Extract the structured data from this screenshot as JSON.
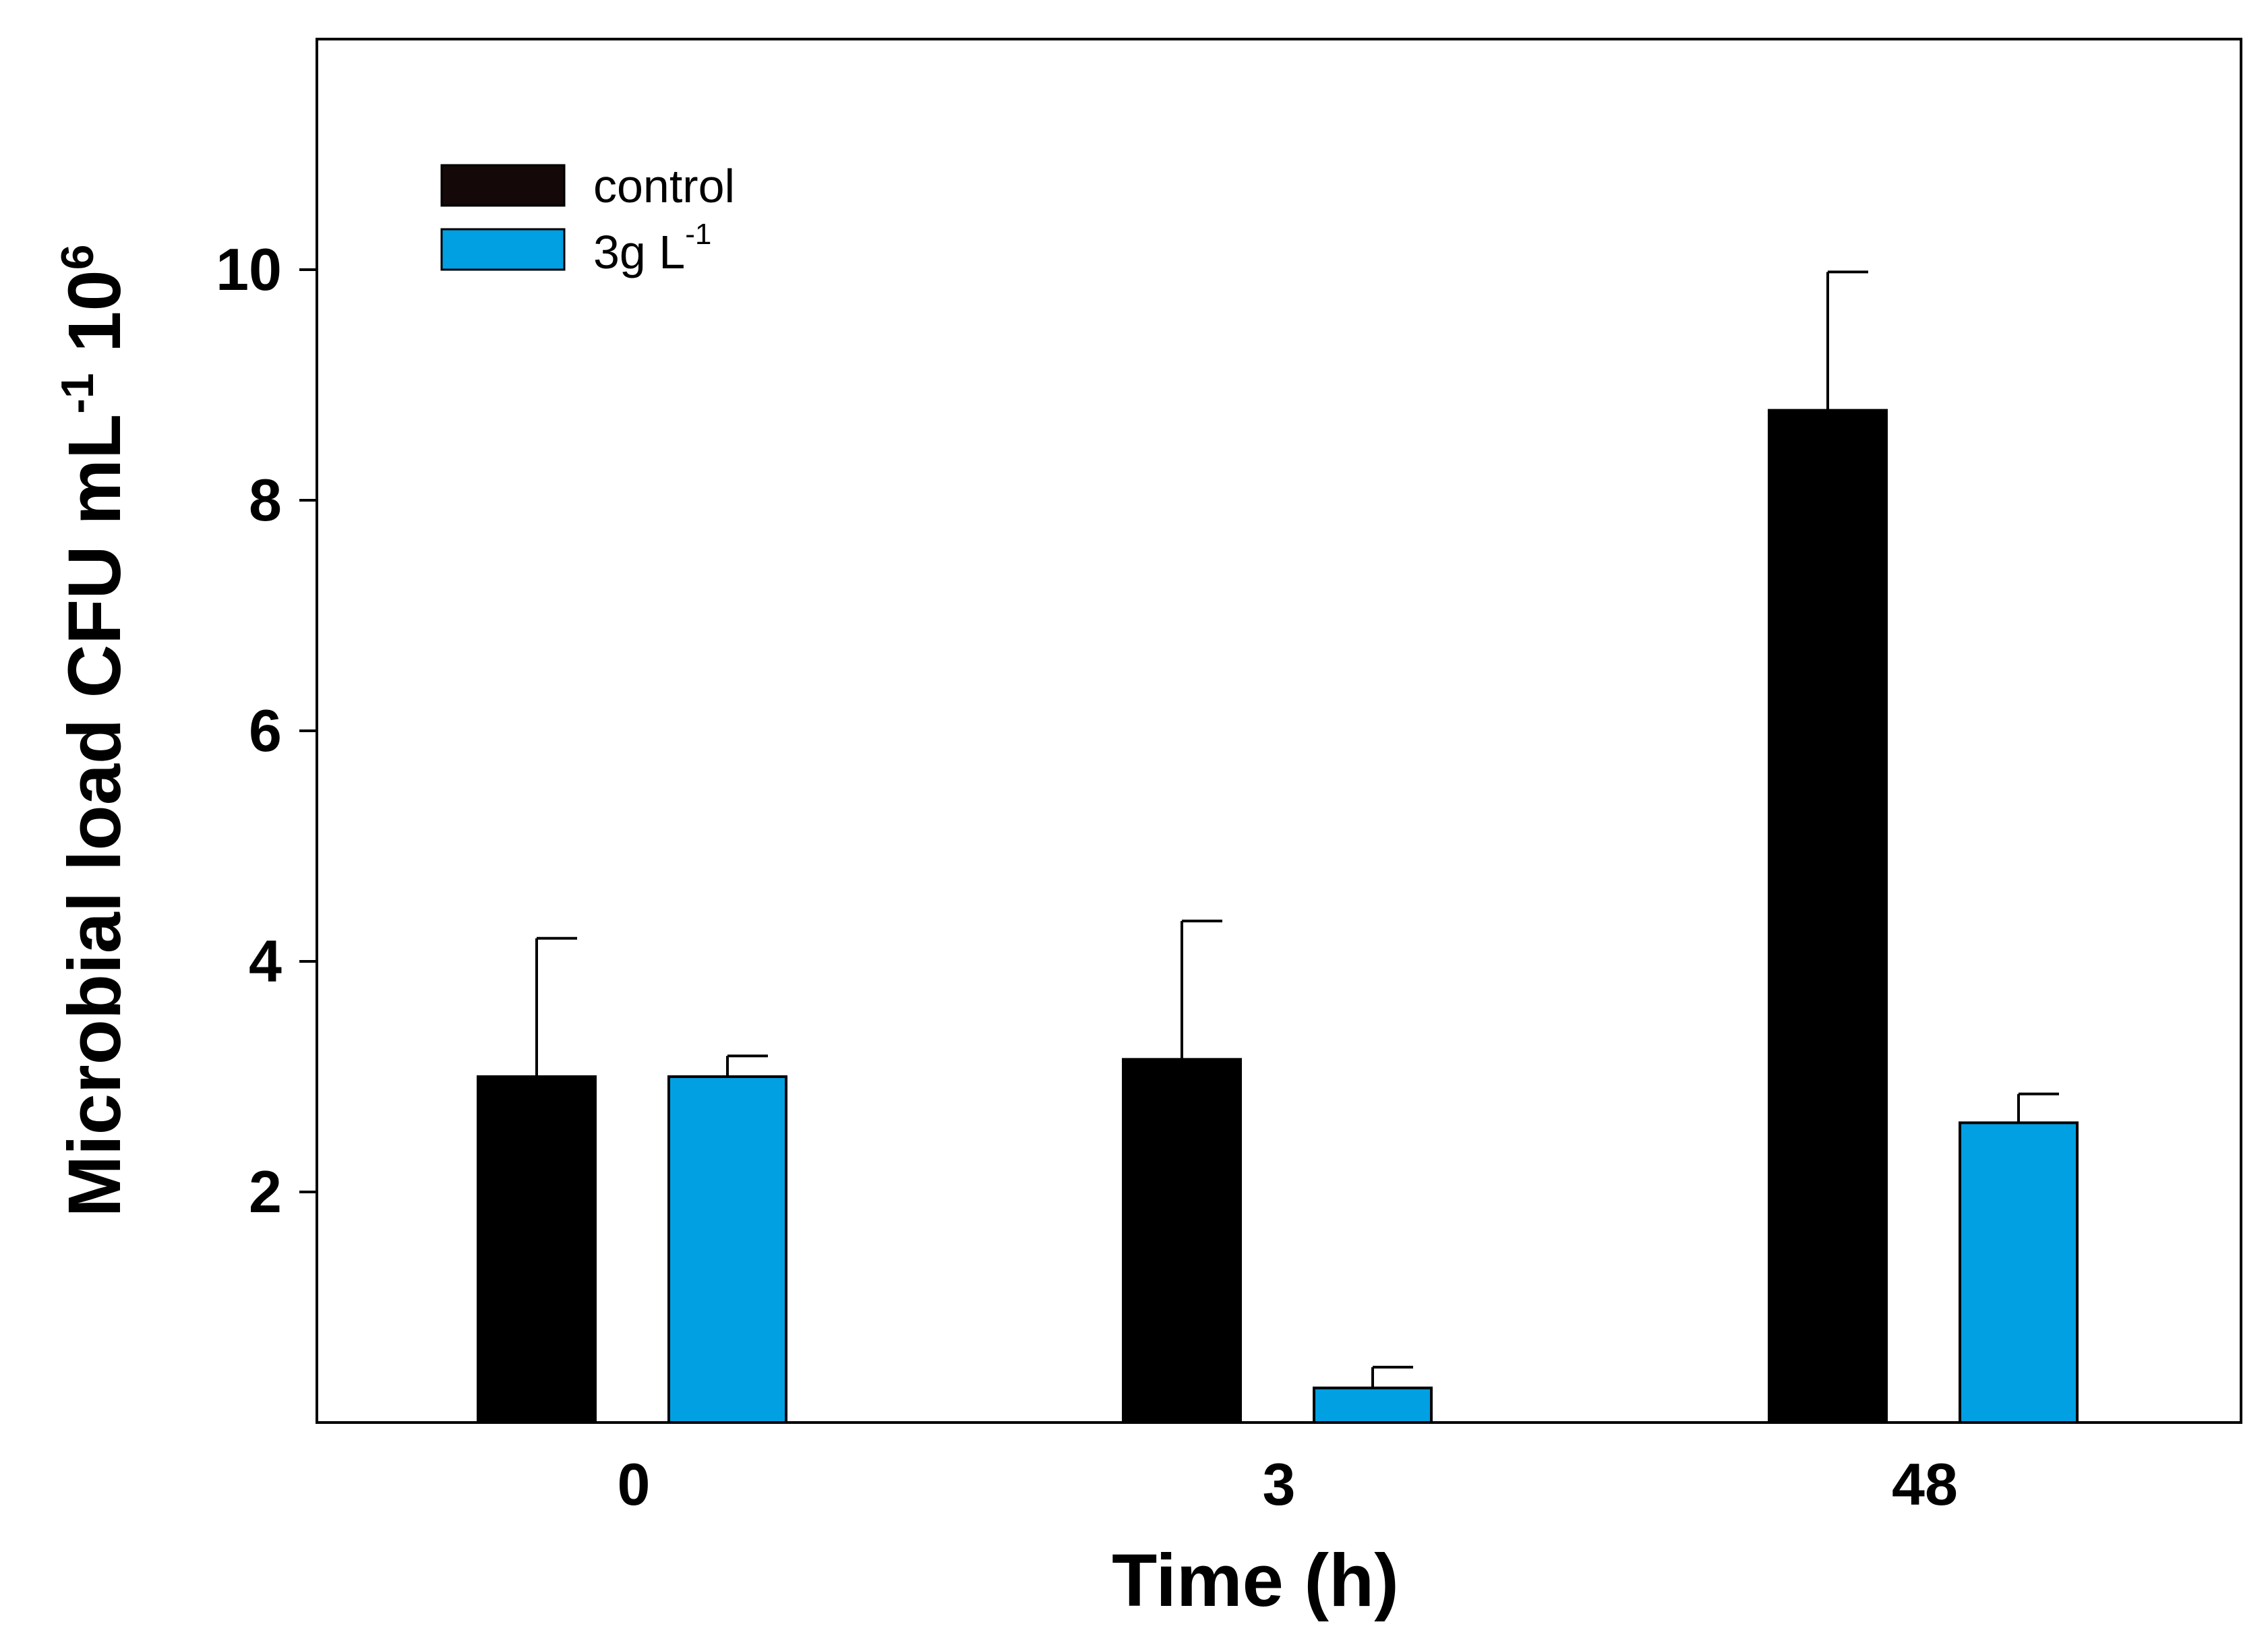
{
  "chart_data": {
    "type": "bar",
    "title": "",
    "xlabel": "Time (h)",
    "ylabel": {
      "main": "Microbial load CFU mL",
      "exp1": "-1",
      "base": " 10",
      "exp2": "6"
    },
    "categories": [
      "0",
      "3",
      "48"
    ],
    "ylim": [
      0,
      12
    ],
    "yticks": [
      2,
      4,
      6,
      8,
      10
    ],
    "ytick_labels": [
      "2",
      "4",
      "6",
      "8",
      "10"
    ],
    "legend_position": "top-left",
    "series": [
      {
        "name": "control",
        "legend": {
          "text": "control",
          "sup": ""
        },
        "color": "#000000",
        "legend_color": "#140808",
        "values": [
          3.0,
          3.15,
          8.78
        ],
        "errors": [
          1.2,
          1.2,
          1.2
        ]
      },
      {
        "name": "3g L-1",
        "legend": {
          "text": "3g L",
          "sup": "-1"
        },
        "color": "#00A0E3",
        "legend_color": "#00A0E3",
        "values": [
          3.0,
          0.3,
          2.6
        ],
        "errors": [
          0.18,
          0.18,
          0.25
        ]
      }
    ]
  }
}
